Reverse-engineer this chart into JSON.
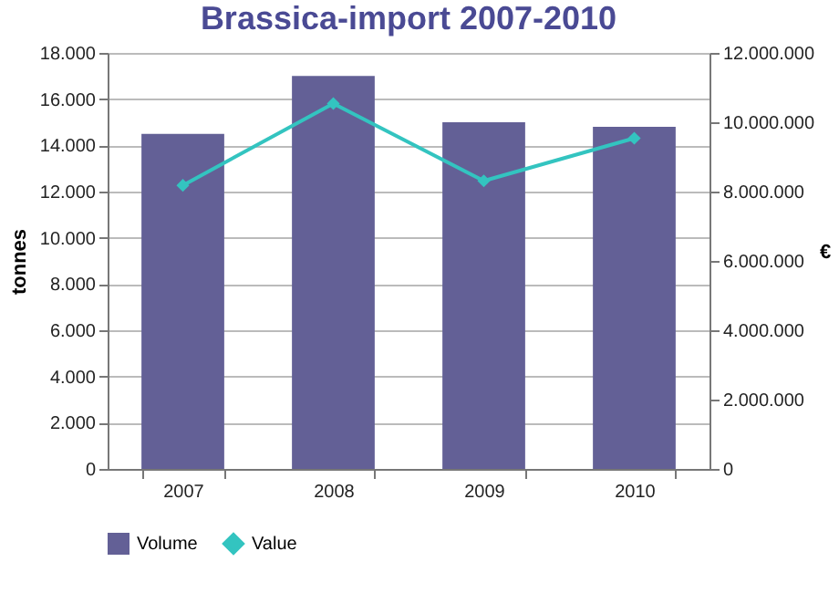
{
  "chart_data": {
    "type": "bar",
    "title": "Brassica-import 2007-2010",
    "ylabel": "tonnes",
    "y2label": "€",
    "categories": [
      "2007",
      "2008",
      "2009",
      "2010"
    ],
    "series": [
      {
        "name": "Volume",
        "color": "#636096",
        "values": [
          14500,
          17000,
          15000,
          14800
        ]
      },
      {
        "name": "Value",
        "type": "line",
        "axis": "y2",
        "color": "#33c4c0",
        "values": [
          8180000,
          10540000,
          8310000,
          9540000
        ]
      }
    ],
    "ylim": [
      0,
      18000
    ],
    "yticks": [
      {
        "value": 0,
        "label": "0"
      },
      {
        "value": 2000,
        "label": "2.000"
      },
      {
        "value": 4000,
        "label": "4.000"
      },
      {
        "value": 6000,
        "label": "6.000"
      },
      {
        "value": 8000,
        "label": "8.000"
      },
      {
        "value": 10000,
        "label": "10.000"
      },
      {
        "value": 12000,
        "label": "12.000"
      },
      {
        "value": 14000,
        "label": "14.000"
      },
      {
        "value": 16000,
        "label": "16.000"
      },
      {
        "value": 18000,
        "label": "18.000"
      }
    ],
    "y2lim": [
      0,
      12000000
    ],
    "y2ticks": [
      {
        "value": 0,
        "label": "0"
      },
      {
        "value": 2000000,
        "label": "2.000.000"
      },
      {
        "value": 4000000,
        "label": "4.000.000"
      },
      {
        "value": 6000000,
        "label": "6.000.000"
      },
      {
        "value": 8000000,
        "label": "8.000.000"
      },
      {
        "value": 10000000,
        "label": "10.000.000"
      },
      {
        "value": 12000000,
        "label": "12.000.000"
      }
    ],
    "grid": "y",
    "legend": "bottom",
    "marker": "diamond",
    "line_style": "solid"
  }
}
